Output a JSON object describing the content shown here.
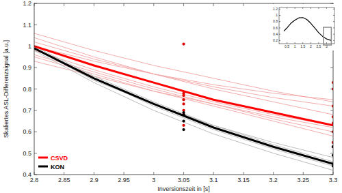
{
  "chart_data": [
    {
      "type": "line",
      "x_label": "Inversionszeit in [s]",
      "y_label": "Skaliertes ASL-Differenzsignal [a.u.]",
      "x": [
        2.8,
        2.9,
        3.0,
        3.1,
        3.2,
        3.3
      ],
      "xlim": [
        2.8,
        3.3
      ],
      "xticks": [
        2.8,
        2.85,
        2.9,
        2.95,
        3,
        3.05,
        3.1,
        3.15,
        3.2,
        3.25,
        3.3
      ],
      "ylim": [
        0.4,
        1.2
      ],
      "yticks": [
        0.4,
        0.5,
        0.6,
        0.7,
        0.8,
        0.9,
        1,
        1.1,
        1.2
      ],
      "grid": false,
      "legend": "lower left",
      "series": [
        {
          "type": "line",
          "color": "#f2a3a3",
          "values": [
            1.06,
            0.98,
            0.91,
            0.85,
            0.79,
            0.74
          ]
        },
        {
          "type": "line",
          "color": "#f2a3a3",
          "values": [
            1.04,
            0.95,
            0.87,
            0.8,
            0.74,
            0.68
          ]
        },
        {
          "type": "line",
          "color": "#f2a3a3",
          "values": [
            1.02,
            0.94,
            0.87,
            0.81,
            0.76,
            0.72
          ]
        },
        {
          "type": "line",
          "color": "#f2a3a3",
          "values": [
            1.0,
            0.93,
            0.87,
            0.82,
            0.78,
            0.75
          ]
        },
        {
          "type": "line",
          "color": "#f2a3a3",
          "values": [
            0.98,
            0.89,
            0.81,
            0.74,
            0.68,
            0.63
          ]
        },
        {
          "type": "line",
          "color": "#f2a3a3",
          "values": [
            0.96,
            0.88,
            0.8,
            0.73,
            0.66,
            0.6
          ]
        },
        {
          "type": "line",
          "color": "#f2a3a3",
          "values": [
            0.95,
            0.87,
            0.79,
            0.72,
            0.65,
            0.58
          ]
        },
        {
          "type": "line",
          "color": "#f2a3a3",
          "values": [
            0.93,
            0.86,
            0.79,
            0.73,
            0.67,
            0.62
          ]
        },
        {
          "type": "line",
          "color": "#b4b4b4",
          "values": [
            1.0,
            0.86,
            0.74,
            0.63,
            0.54,
            0.46
          ]
        },
        {
          "type": "line",
          "color": "#b4b4b4",
          "values": [
            0.99,
            0.85,
            0.72,
            0.61,
            0.52,
            0.44
          ]
        },
        {
          "type": "line",
          "color": "#b4b4b4",
          "values": [
            0.98,
            0.83,
            0.7,
            0.59,
            0.5,
            0.42
          ]
        },
        {
          "type": "line",
          "color": "#b4b4b4",
          "values": [
            0.99,
            0.84,
            0.73,
            0.63,
            0.55,
            0.48
          ]
        },
        {
          "type": "scatter",
          "marker": "circle",
          "color": "#e00000",
          "x": [
            3.05,
            3.05,
            3.05,
            3.05,
            3.05,
            3.05,
            3.05,
            3.05,
            3.3,
            3.3,
            3.3,
            3.3,
            3.3,
            3.3,
            3.3,
            3.3
          ],
          "values": [
            1.01,
            0.78,
            0.77,
            0.75,
            0.73,
            0.7,
            0.68,
            0.63,
            0.83,
            0.8,
            0.72,
            0.67,
            0.64,
            0.6,
            0.55,
            0.53
          ]
        },
        {
          "type": "scatter",
          "marker": "circle",
          "color": "#000000",
          "x": [
            3.05,
            3.05,
            3.05,
            3.05,
            3.3,
            3.3,
            3.3,
            3.3
          ],
          "values": [
            0.69,
            0.68,
            0.65,
            0.61,
            0.53,
            0.49,
            0.45,
            0.44
          ]
        },
        {
          "type": "line",
          "name": "CSVD",
          "color": "#ff0000",
          "values": [
            1.0,
            0.91,
            0.83,
            0.75,
            0.69,
            0.63
          ]
        },
        {
          "type": "line",
          "name": "KON",
          "color": "#000000",
          "values": [
            0.99,
            0.85,
            0.73,
            0.62,
            0.53,
            0.45
          ]
        }
      ]
    },
    {
      "type": "line",
      "x": [
        0.3,
        0.5,
        0.75,
        1.0,
        1.25,
        1.5,
        1.75,
        2.0,
        2.25,
        2.5,
        2.75,
        3.0,
        3.3
      ],
      "values": [
        0.5,
        0.6,
        0.75,
        0.85,
        0.92,
        0.93,
        0.87,
        0.75,
        0.6,
        0.45,
        0.33,
        0.25,
        0.2
      ],
      "color": "#000000",
      "xlim": [
        0,
        3.5
      ],
      "xticks": [
        0.5,
        1,
        1.5,
        2,
        2.5,
        3
      ],
      "ylim": [
        0.1,
        1.25
      ],
      "yticks": [
        0.2,
        0.4,
        0.6,
        0.8,
        1,
        1.2
      ],
      "grid": false
    }
  ]
}
